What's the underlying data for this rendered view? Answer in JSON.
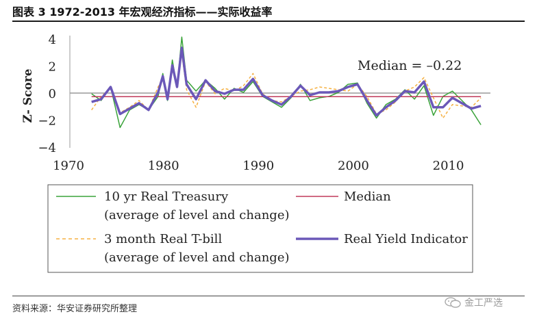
{
  "figure_title": "图表 3 1972-2013 年宏观经济指标——实际收益率",
  "source": "资料来源：华安证券研究所整理",
  "watermark": "金工严选",
  "colors": {
    "treasury": "#3aa33a",
    "tbill": "#f5b040",
    "median": "#c0395a",
    "indicator": "#6b58b8",
    "axis": "#999999"
  },
  "chart_data": {
    "type": "line",
    "ylabel": "Z- Score",
    "xlim": [
      1970,
      2014
    ],
    "ylim": [
      -4,
      4
    ],
    "x_ticks": [
      1970,
      1980,
      1990,
      2000,
      2010
    ],
    "y_ticks": [
      4,
      2,
      0,
      -2,
      -4
    ],
    "y_tick_labels": [
      "4",
      "2",
      "0",
      "−2",
      "−4"
    ],
    "median_value": -0.22,
    "annotation": "Median = –0.22",
    "x": [
      1972,
      1973,
      1974,
      1975,
      1976,
      1977,
      1978,
      1979,
      1979.5,
      1980,
      1980.5,
      1981,
      1981.5,
      1982,
      1983,
      1984,
      1985,
      1986,
      1987,
      1988,
      1989,
      1990,
      1991,
      1992,
      1993,
      1994,
      1995,
      1996,
      1997,
      1998,
      1999,
      2000,
      2001,
      2002,
      2003,
      2004,
      2005,
      2006,
      2007,
      2008,
      2009,
      2010,
      2011,
      2012,
      2013
    ],
    "series": [
      {
        "name": "10 yr Real Treasury",
        "values": [
          0.0,
          -0.5,
          0.5,
          -2.5,
          -1.2,
          -0.8,
          -1.2,
          -0.2,
          1.5,
          -0.5,
          2.5,
          0.5,
          4.2,
          1.0,
          0.2,
          1.0,
          0.4,
          -0.4,
          0.4,
          0.1,
          0.9,
          -0.2,
          -0.6,
          -1.0,
          -0.3,
          0.7,
          -0.5,
          -0.3,
          -0.2,
          0.1,
          0.7,
          0.8,
          -0.7,
          -1.8,
          -0.8,
          -0.4,
          0.3,
          -0.4,
          0.6,
          -1.6,
          -0.2,
          0.2,
          -0.5,
          -1.2,
          -2.3
        ]
      },
      {
        "name": "3 month Real T-bill",
        "values": [
          -1.2,
          -0.2,
          0.4,
          -1.4,
          -1.0,
          -0.5,
          -1.2,
          0.5,
          1.2,
          -0.3,
          1.8,
          0.5,
          3.0,
          0.3,
          -1.0,
          0.9,
          0.0,
          0.4,
          0.2,
          0.6,
          1.5,
          0.0,
          -0.5,
          -0.6,
          -0.2,
          0.2,
          0.3,
          0.5,
          0.4,
          0.3,
          0.2,
          0.7,
          -0.2,
          -1.5,
          -1.2,
          -0.6,
          0.2,
          0.5,
          1.2,
          -0.3,
          -1.8,
          -0.8,
          -0.9,
          -1.0,
          -0.3
        ]
      },
      {
        "name": "Median",
        "values": [
          -0.22,
          -0.22,
          -0.22,
          -0.22,
          -0.22,
          -0.22,
          -0.22,
          -0.22,
          -0.22,
          -0.22,
          -0.22,
          -0.22,
          -0.22,
          -0.22,
          -0.22,
          -0.22,
          -0.22,
          -0.22,
          -0.22,
          -0.22,
          -0.22,
          -0.22,
          -0.22,
          -0.22,
          -0.22,
          -0.22,
          -0.22,
          -0.22,
          -0.22,
          -0.22,
          -0.22,
          -0.22,
          -0.22,
          -0.22,
          -0.22,
          -0.22,
          -0.22,
          -0.22,
          -0.22,
          -0.22,
          -0.22,
          -0.22,
          -0.22,
          -0.22,
          -0.22
        ]
      },
      {
        "name": "Real Yield Indicator",
        "values": [
          -0.6,
          -0.4,
          0.5,
          -1.5,
          -1.1,
          -0.7,
          -1.2,
          0.1,
          1.3,
          -0.4,
          2.1,
          0.5,
          3.4,
          0.7,
          -0.4,
          1.0,
          0.2,
          0.0,
          0.3,
          0.3,
          1.1,
          -0.1,
          -0.5,
          -0.8,
          -0.2,
          0.6,
          -0.1,
          0.1,
          0.1,
          0.2,
          0.5,
          0.7,
          -0.5,
          -1.6,
          -1.0,
          -0.5,
          0.2,
          0.1,
          0.9,
          -1.0,
          -1.0,
          -0.3,
          -0.7,
          -1.1,
          -0.9
        ]
      }
    ],
    "legend": {
      "placement": "bottom",
      "entries": [
        {
          "line1": "10 yr Real Treasury",
          "line2": "(average of level and change)"
        },
        {
          "line1": "Median",
          "line2": ""
        },
        {
          "line1": "3 month Real T-bill",
          "line2": "(average of level and change)"
        },
        {
          "line1": "Real Yield Indicator",
          "line2": ""
        }
      ]
    }
  }
}
